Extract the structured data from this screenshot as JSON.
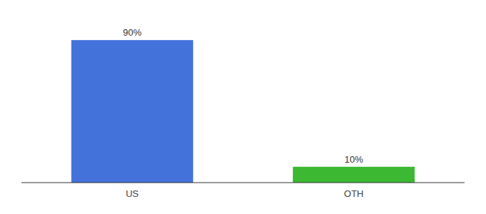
{
  "chart_data": {
    "type": "bar",
    "categories": [
      "US",
      "OTH"
    ],
    "values": [
      90,
      10
    ],
    "value_labels": [
      "90%",
      "10%"
    ],
    "colors": [
      "#4472db",
      "#3cb832"
    ],
    "ylim": [
      0,
      100
    ],
    "data_labels": true,
    "tick_labels": "x"
  }
}
